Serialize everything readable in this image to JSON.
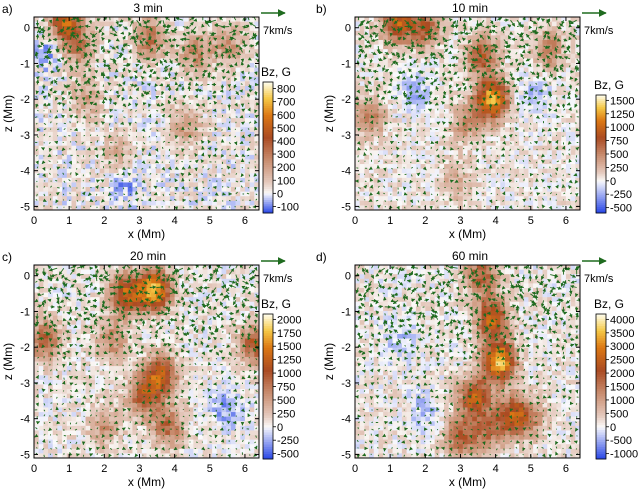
{
  "chart_data": [
    {
      "type": "heatmap",
      "panel_label": "a)",
      "title": "3 min",
      "xlabel": "x (Mm)",
      "ylabel": "z (Mm)",
      "xlim": [
        0,
        6.4
      ],
      "ylim": [
        -5.1,
        0.3
      ],
      "xticks": [
        0,
        1,
        2,
        3,
        4,
        5,
        6
      ],
      "yticks": [
        0,
        -1,
        -2,
        -3,
        -4,
        -5
      ],
      "colorbar": {
        "title": "Bz, G",
        "min": -150,
        "max": 850,
        "ticks": [
          800,
          700,
          600,
          500,
          400,
          300,
          200,
          100,
          0,
          -100
        ]
      },
      "vector_scale_label": "7km/s",
      "concentrations": [
        {
          "x": 0.9,
          "z": 0.1,
          "bz": 500
        },
        {
          "x": 1.3,
          "z": -0.6,
          "bz": 250
        },
        {
          "x": 3.3,
          "z": -0.3,
          "bz": 300
        },
        {
          "x": 4.6,
          "z": -0.7,
          "bz": 250
        },
        {
          "x": 5.5,
          "z": -0.5,
          "bz": 200
        },
        {
          "x": 4.3,
          "z": -2.7,
          "bz": 200
        },
        {
          "x": 1.5,
          "z": -2.0,
          "bz": 180
        },
        {
          "x": 2.4,
          "z": -3.5,
          "bz": 150
        },
        {
          "x": 0.4,
          "z": -0.6,
          "bz": -100
        },
        {
          "x": 2.6,
          "z": -4.4,
          "bz": -100
        }
      ]
    },
    {
      "type": "heatmap",
      "panel_label": "b)",
      "title": "10 min",
      "xlabel": "x (Mm)",
      "ylabel": "z (Mm)",
      "xlim": [
        0,
        6.4
      ],
      "ylim": [
        -5.1,
        0.3
      ],
      "xticks": [
        0,
        1,
        2,
        3,
        4,
        5,
        6
      ],
      "yticks": [
        0,
        -1,
        -2,
        -3,
        -4,
        -5
      ],
      "colorbar": {
        "title": "Bz, G",
        "min": -600,
        "max": 1600,
        "ticks": [
          1500,
          1250,
          1000,
          750,
          500,
          250,
          0,
          -250,
          -500
        ]
      },
      "vector_scale_label": "7km/s",
      "concentrations": [
        {
          "x": 1.2,
          "z": 0.1,
          "bz": 900
        },
        {
          "x": 2.0,
          "z": 0.0,
          "bz": 700
        },
        {
          "x": 3.6,
          "z": -0.8,
          "bz": 700
        },
        {
          "x": 3.9,
          "z": -2.0,
          "bz": 1300
        },
        {
          "x": 0.4,
          "z": -2.5,
          "bz": 500
        },
        {
          "x": 5.5,
          "z": -0.6,
          "bz": 500
        },
        {
          "x": 3.2,
          "z": -2.7,
          "bz": 400
        },
        {
          "x": 2.9,
          "z": -4.3,
          "bz": 300
        },
        {
          "x": 1.7,
          "z": -1.8,
          "bz": -300
        },
        {
          "x": 5.1,
          "z": -1.9,
          "bz": -250
        }
      ]
    },
    {
      "type": "heatmap",
      "panel_label": "c)",
      "title": "20 min",
      "xlabel": "x (Mm)",
      "ylabel": "z (Mm)",
      "xlim": [
        0,
        6.4
      ],
      "ylim": [
        -5.1,
        0.3
      ],
      "xticks": [
        0,
        1,
        2,
        3,
        4,
        5,
        6
      ],
      "yticks": [
        0,
        -1,
        -2,
        -3,
        -4,
        -5
      ],
      "colorbar": {
        "title": "Bz, G",
        "min": -600,
        "max": 2100,
        "ticks": [
          2000,
          1750,
          1500,
          1250,
          1000,
          750,
          500,
          250,
          0,
          -250,
          -500
        ]
      },
      "vector_scale_label": "7km/s",
      "concentrations": [
        {
          "x": 3.4,
          "z": -0.4,
          "bz": 1800
        },
        {
          "x": 2.6,
          "z": -0.5,
          "bz": 1200
        },
        {
          "x": 3.6,
          "z": -2.8,
          "bz": 1300
        },
        {
          "x": 3.1,
          "z": -3.4,
          "bz": 900
        },
        {
          "x": 0.3,
          "z": -1.8,
          "bz": 900
        },
        {
          "x": 2.2,
          "z": -1.8,
          "bz": 600
        },
        {
          "x": 6.3,
          "z": -1.9,
          "bz": 1000
        },
        {
          "x": 3.8,
          "z": -4.2,
          "bz": 800
        },
        {
          "x": 2.0,
          "z": -4.2,
          "bz": 500
        },
        {
          "x": 5.5,
          "z": -3.7,
          "bz": -400
        }
      ]
    },
    {
      "type": "heatmap",
      "panel_label": "d)",
      "title": "60 min",
      "xlabel": "x (Mm)",
      "ylabel": "z (Mm)",
      "xlim": [
        0,
        6.4
      ],
      "ylim": [
        -5.1,
        0.3
      ],
      "xticks": [
        0,
        1,
        2,
        3,
        4,
        5,
        6
      ],
      "yticks": [
        0,
        -1,
        -2,
        -3,
        -4,
        -5
      ],
      "colorbar": {
        "title": "Bz, G",
        "min": -1200,
        "max": 4200,
        "ticks": [
          4000,
          3500,
          3000,
          2500,
          2000,
          1500,
          1000,
          500,
          0,
          -500,
          -1000
        ]
      },
      "vector_scale_label": "7km/s",
      "concentrations": [
        {
          "x": 4.1,
          "z": -2.4,
          "bz": 3600
        },
        {
          "x": 3.9,
          "z": -1.2,
          "bz": 2600
        },
        {
          "x": 3.6,
          "z": 0.0,
          "bz": 1800
        },
        {
          "x": 3.4,
          "z": -3.4,
          "bz": 2400
        },
        {
          "x": 4.5,
          "z": -3.9,
          "bz": 2200
        },
        {
          "x": 3.0,
          "z": -4.5,
          "bz": 1800
        },
        {
          "x": 3.8,
          "z": -4.3,
          "bz": 1500
        },
        {
          "x": 5.0,
          "z": -4.0,
          "bz": 1000
        },
        {
          "x": 1.3,
          "z": -1.8,
          "bz": -500
        },
        {
          "x": 2.0,
          "z": -3.8,
          "bz": -500
        }
      ]
    }
  ]
}
